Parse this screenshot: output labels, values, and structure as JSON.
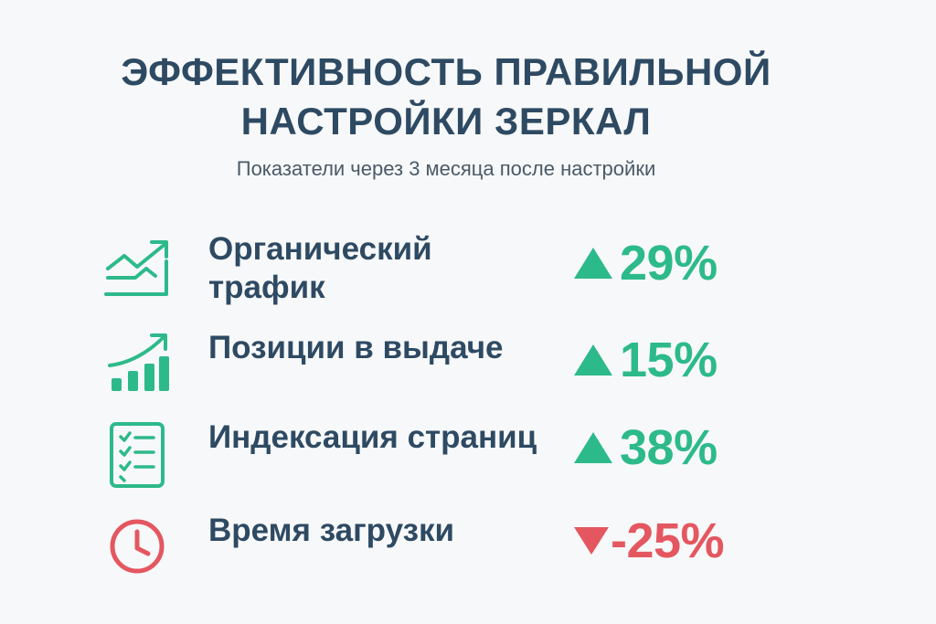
{
  "header": {
    "title_line1": "ЭФФЕКТИВНОСТЬ ПРАВИЛЬНОЙ",
    "title_line2": "НАСТРОЙКИ ЗЕРКАЛ",
    "subtitle": "Показатели через 3 месяца после настройки"
  },
  "colors": {
    "title": "#2e4a63",
    "positive": "#2dba8a",
    "negative": "#e45760",
    "background": "#f7f8f9"
  },
  "metrics": [
    {
      "label_line1": "Органический",
      "label_line2": "трафик",
      "icon": "trending-up-icon",
      "direction": "up",
      "value": "29%"
    },
    {
      "label_line1": "Позиции в выдаче",
      "icon": "bar-chart-growth-icon",
      "direction": "up",
      "value": "15%"
    },
    {
      "label_line1": "Индексация страниц",
      "icon": "checklist-icon",
      "direction": "up",
      "value": "38%"
    },
    {
      "label_line1": "Время загрузки",
      "icon": "clock-icon",
      "direction": "down",
      "value": "-25%"
    }
  ]
}
